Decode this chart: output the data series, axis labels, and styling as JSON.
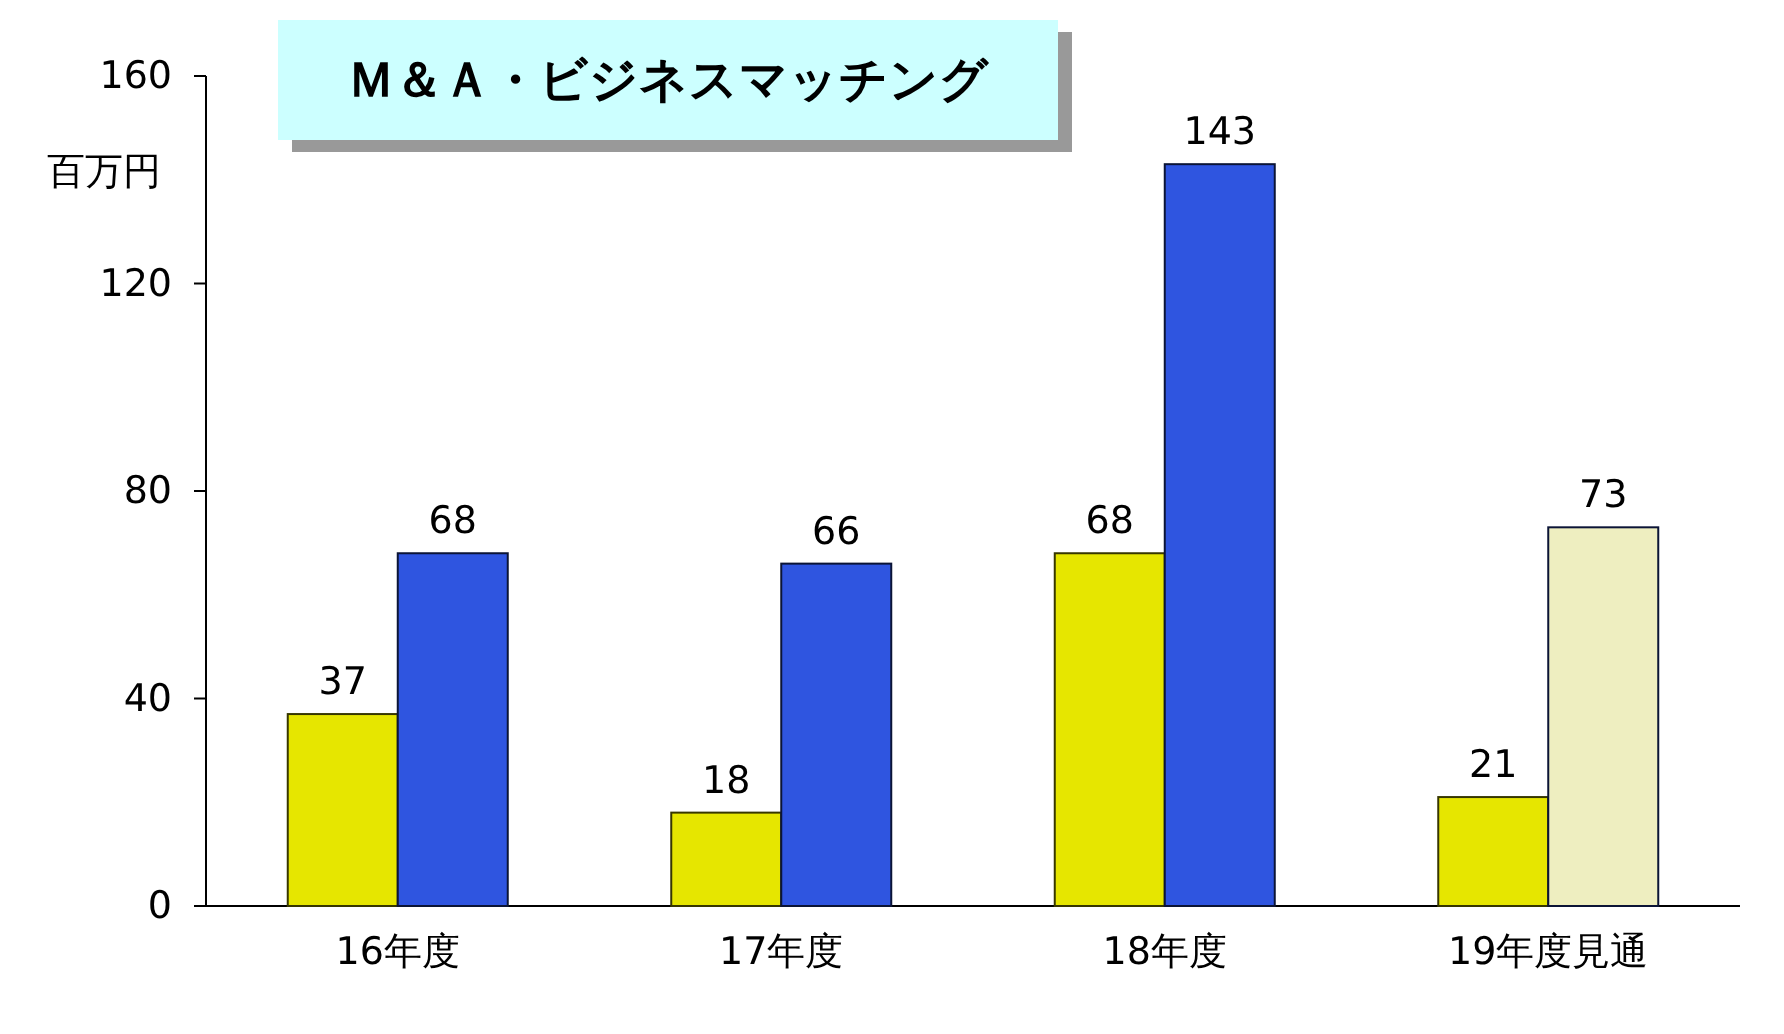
{
  "chart_data": {
    "type": "bar",
    "title": "Ｍ＆Ａ・ビジネスマッチング",
    "ylabel": "百万円",
    "categories": [
      "16年度",
      "17年度",
      "18年度",
      "19年度見通"
    ],
    "series": [
      {
        "color": "#e6e600",
        "values": [
          37,
          18,
          68,
          21
        ]
      },
      {
        "color": "#2f55e0",
        "colors": [
          "#2f55e0",
          "#2f55e0",
          "#2f55e0",
          "#eeeec0"
        ],
        "values": [
          68,
          66,
          143,
          73
        ]
      }
    ],
    "ylim": [
      0,
      160
    ],
    "yticks": [
      0,
      40,
      80,
      120,
      160
    ],
    "data_labels": true
  }
}
